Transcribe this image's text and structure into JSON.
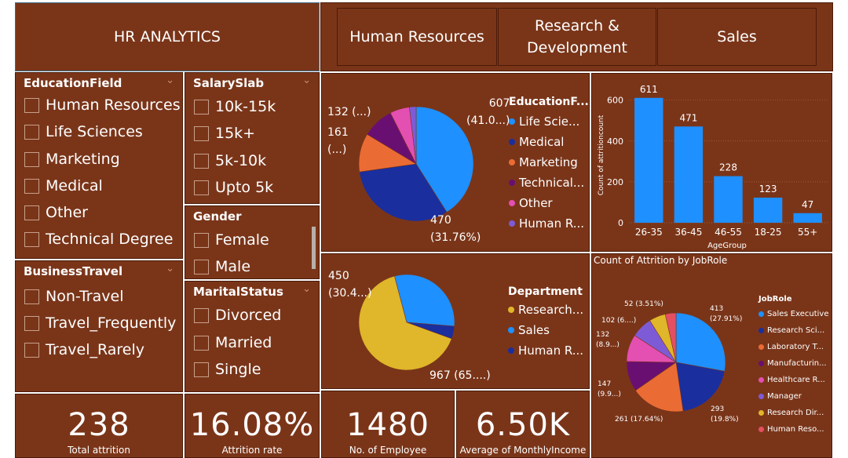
{
  "header": {
    "title": "HR ANALYTICS",
    "dept_buttons": [
      "Human Resources",
      "Research &\nDevelopment",
      "Sales"
    ]
  },
  "slicers": {
    "education": {
      "title": "EducationField",
      "items": [
        "Human Resources",
        "Life Sciences",
        "Marketing",
        "Medical",
        "Other",
        "Technical Degree"
      ]
    },
    "salary": {
      "title": "SalarySlab",
      "items": [
        "10k-15k",
        "15k+",
        "5k-10k",
        "Upto 5k"
      ]
    },
    "gender": {
      "title": "Gender",
      "items": [
        "Female",
        "Male"
      ]
    },
    "travel": {
      "title": "BusinessTravel",
      "items": [
        "Non-Travel",
        "Travel_Frequently",
        "Travel_Rarely"
      ]
    },
    "marital": {
      "title": "MaritalStatus",
      "items": [
        "Divorced",
        "Married",
        "Single"
      ]
    }
  },
  "kpis": [
    {
      "value": "238",
      "label": "Total attrition"
    },
    {
      "value": "16.08%",
      "label": "Attrition rate"
    },
    {
      "value": "1480",
      "label": "No. of Employee"
    },
    {
      "value": "6.50K",
      "label": "Average of MonthlyIncome"
    }
  ],
  "edu_pie": {
    "legend_title": "EducationF...",
    "legend": [
      "Life Scie...",
      "Medical",
      "Marketing",
      "Technical...",
      "Other",
      "Human R..."
    ],
    "labels": [
      "607\n(41.0...)",
      "470\n(31.76%)",
      "132 (...)",
      "161\n(...)"
    ]
  },
  "dept_pie": {
    "legend_title": "Department",
    "legend": [
      "Research...",
      "Sales",
      "Human R..."
    ],
    "labels": [
      "450\n(30.4...)",
      "967 (65....)"
    ]
  },
  "jobrole_pie": {
    "title": "Count of Attrition by JobRole",
    "legend_title": "JobRole",
    "legend": [
      "Sales Executive",
      "Research Sci...",
      "Laboratory T...",
      "Manufacturin...",
      "Healthcare R...",
      "Manager",
      "Research Dir...",
      "Human Reso..."
    ],
    "labels": [
      "52 (3.51%)",
      "413\n(27.91%)",
      "102 (6....)",
      "132\n(8.9...)",
      "147\n(9.9...)",
      "293\n(19.8%)",
      "261 (17.64%)"
    ]
  },
  "colors": {
    "background": "#7a3519",
    "border": "#4a1a08",
    "blue": "#1e90ff",
    "navy": "#1a2e9e",
    "orange": "#ea6c34",
    "purple": "#6a0f72",
    "pink": "#e44fb2",
    "violet": "#7e5bd6",
    "gold": "#e0b62a",
    "red": "#e54f62"
  },
  "chart_data": [
    {
      "type": "bar",
      "categories": [
        "26-35",
        "36-45",
        "46-55",
        "18-25",
        "55+"
      ],
      "values": [
        611,
        471,
        228,
        123,
        47
      ],
      "xlabel": "AgeGroup",
      "ylabel": "Count of attritioncount",
      "ylim": [
        0,
        650
      ],
      "yticks": [
        0,
        200,
        400,
        600
      ],
      "grid": true
    },
    {
      "type": "pie",
      "legend_title": "EducationF...",
      "categories": [
        "Life Sciences",
        "Medical",
        "Marketing",
        "Technical Degree",
        "Other",
        "Human Resources"
      ],
      "values": [
        607,
        470,
        161,
        132,
        82,
        28
      ]
    },
    {
      "type": "pie",
      "legend_title": "Department",
      "categories": [
        "Research & Development",
        "Sales",
        "Human Resources"
      ],
      "values": [
        967,
        450,
        63
      ]
    },
    {
      "type": "pie",
      "title": "Count of Attrition by JobRole",
      "categories": [
        "Sales Executive",
        "Research Scientist",
        "Laboratory Technician",
        "Manufacturing Director",
        "Healthcare Representative",
        "Manager",
        "Research Director",
        "Human Resources"
      ],
      "values": [
        413,
        293,
        261,
        147,
        132,
        102,
        80,
        52
      ]
    }
  ]
}
